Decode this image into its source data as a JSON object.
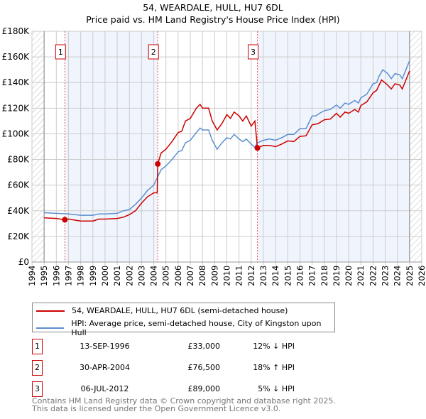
{
  "chart_data": {
    "type": "line",
    "title": "54, WEARDALE, HULL, HU7 6DL",
    "subtitle": "Price paid vs. HM Land Registry's House Price Index (HPI)",
    "xlim": [
      1994,
      2026
    ],
    "ylim": [
      0,
      180000
    ],
    "x_ticks": [
      "1994",
      "1995",
      "1996",
      "1997",
      "1998",
      "1999",
      "2000",
      "2001",
      "2002",
      "2003",
      "2004",
      "2005",
      "2006",
      "2007",
      "2008",
      "2009",
      "2010",
      "2011",
      "2012",
      "2013",
      "2014",
      "2015",
      "2016",
      "2017",
      "2018",
      "2019",
      "2020",
      "2021",
      "2022",
      "2023",
      "2024",
      "2025",
      "2026"
    ],
    "y_ticks": [
      {
        "v": 0,
        "label": "£0"
      },
      {
        "v": 20000,
        "label": "£20K"
      },
      {
        "v": 40000,
        "label": "£40K"
      },
      {
        "v": 60000,
        "label": "£60K"
      },
      {
        "v": 80000,
        "label": "£80K"
      },
      {
        "v": 100000,
        "label": "£100K"
      },
      {
        "v": 120000,
        "label": "£120K"
      },
      {
        "v": 140000,
        "label": "£140K"
      },
      {
        "v": 160000,
        "label": "£160K"
      },
      {
        "v": 180000,
        "label": "£180K"
      }
    ],
    "grid": true,
    "series": [
      {
        "name": "54, WEARDALE, HULL, HU7 6DL (semi-detached house)",
        "color": "#cc0000",
        "x": [
          1995,
          1996,
          1996.7,
          1997,
          1998,
          1999,
          1999.5,
          2000,
          2001,
          2001.5,
          2002,
          2002.5,
          2003,
          2003.5,
          2004,
          2004.28,
          2004.33,
          2004.6,
          2005,
          2005.5,
          2006,
          2006.3,
          2006.6,
          2007,
          2007.5,
          2007.8,
          2008,
          2008.5,
          2008.8,
          2009.2,
          2009.6,
          2010,
          2010.3,
          2010.6,
          2011,
          2011.3,
          2011.6,
          2012,
          2012.3,
          2012.51,
          2013,
          2013.5,
          2014,
          2014.5,
          2015,
          2015.5,
          2016,
          2016.5,
          2017,
          2017.5,
          2018,
          2018.5,
          2019,
          2019.3,
          2019.7,
          2020,
          2020.5,
          2020.8,
          2021,
          2021.5,
          2022,
          2022.3,
          2022.7,
          2023.2,
          2023.5,
          2023.8,
          2024.2,
          2024.4,
          2024.7,
          2025
        ],
        "y": [
          34500,
          34000,
          33000,
          33500,
          32000,
          32000,
          33500,
          33500,
          34000,
          35000,
          37000,
          40000,
          46000,
          51000,
          54000,
          54000,
          76500,
          85000,
          88000,
          94000,
          101000,
          102000,
          110000,
          112000,
          120000,
          123000,
          120000,
          120000,
          110000,
          103000,
          108000,
          115000,
          112000,
          117000,
          114000,
          110000,
          114000,
          106000,
          110000,
          89000,
          91000,
          91000,
          90000,
          92000,
          94500,
          94000,
          98000,
          98500,
          107000,
          108000,
          111000,
          111500,
          116000,
          113000,
          117000,
          116000,
          119000,
          117000,
          122000,
          125000,
          132000,
          134000,
          142000,
          138000,
          135000,
          139000,
          138000,
          135000,
          142000,
          149000
        ]
      },
      {
        "name": "HPI: Average price, semi-detached house, City of Kingston upon Hull",
        "color": "#5b8fd0",
        "x": [
          1995,
          1996,
          1997,
          1998,
          1999,
          1999.5,
          2000,
          2001,
          2001.5,
          2002,
          2002.5,
          2003,
          2003.5,
          2004,
          2004.3,
          2004.6,
          2005,
          2005.5,
          2006,
          2006.3,
          2006.6,
          2007,
          2007.5,
          2007.8,
          2008,
          2008.5,
          2008.8,
          2009.2,
          2009.6,
          2010,
          2010.3,
          2010.6,
          2011,
          2011.3,
          2011.6,
          2012,
          2012.3,
          2012.5,
          2013,
          2013.5,
          2014,
          2014.5,
          2015,
          2015.5,
          2016,
          2016.5,
          2017,
          2017.3,
          2017.6,
          2018,
          2018.5,
          2019,
          2019.3,
          2019.7,
          2020,
          2020.5,
          2020.8,
          2021,
          2021.5,
          2022,
          2022.3,
          2022.5,
          2022.8,
          2023.2,
          2023.5,
          2023.8,
          2024.2,
          2024.4,
          2024.7,
          2025
        ],
        "y": [
          38500,
          38000,
          37500,
          36500,
          36500,
          37500,
          37500,
          38000,
          40000,
          41000,
          45000,
          50000,
          56000,
          60000,
          66000,
          72000,
          75000,
          80000,
          86000,
          87000,
          93000,
          95000,
          101000,
          104500,
          103000,
          103000,
          95000,
          88000,
          93000,
          97000,
          96000,
          99500,
          96000,
          94000,
          96000,
          92000,
          89500,
          93000,
          95000,
          96000,
          95000,
          97000,
          99500,
          99500,
          104000,
          104000,
          114000,
          114000,
          116000,
          118000,
          119000,
          122500,
          120000,
          124000,
          123000,
          126000,
          124000,
          128000,
          131000,
          139000,
          140000,
          145000,
          150000,
          147000,
          143000,
          147000,
          146000,
          143000,
          150000,
          157000
        ]
      }
    ],
    "sales": [
      {
        "n": "1",
        "x": 1996.7,
        "y": 33000,
        "date": "13-SEP-1996",
        "price": "£33,000",
        "hpi": "12% ↓ HPI"
      },
      {
        "n": "2",
        "x": 2004.33,
        "y": 76500,
        "date": "30-APR-2004",
        "price": "£76,500",
        "hpi": "18% ↑ HPI"
      },
      {
        "n": "3",
        "x": 2012.51,
        "y": 89000,
        "date": "06-JUL-2012",
        "price": "£89,000",
        "hpi": "5% ↓ HPI"
      }
    ],
    "data_range": [
      1995,
      2025
    ],
    "legend_placement": "bottom"
  },
  "footer": {
    "line1": "Contains HM Land Registry data © Crown copyright and database right 2025.",
    "line2": "This data is licensed under the Open Government Licence v3.0."
  }
}
